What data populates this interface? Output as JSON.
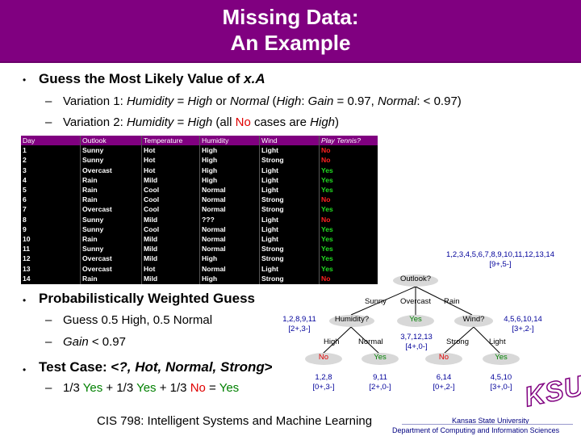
{
  "header": {
    "title_line1": "Missing Data:",
    "title_line2": "An Example"
  },
  "bullet_glyph": "•",
  "guess": {
    "prefix": "Guess the Most Likely Value of ",
    "var": "x.A"
  },
  "var1": {
    "label": "Variation 1:",
    "humidity_eq": "Humidity",
    "eq": " = ",
    "high": "High",
    "or": " or ",
    "normal": "Normal",
    "paren": " (",
    "high2": "High",
    "colon": ": ",
    "gain": "Gain",
    "gain_val": " = 0.97, ",
    "normal2": "Normal",
    "lt": ": < 0.97)"
  },
  "var2": {
    "label": "Variation 2:",
    "humidity": "Humidity",
    "eq": " = ",
    "high": "High",
    "open": " (all ",
    "no": "No",
    "cases": " cases are ",
    "high2": "High",
    "close": ")"
  },
  "table": {
    "headers": [
      "Day",
      "Outlook",
      "Temperature",
      "Humidity",
      "Wind",
      "Play Tennis?"
    ],
    "rows": [
      [
        "1",
        "Sunny",
        "Hot",
        "High",
        "Light",
        "No"
      ],
      [
        "2",
        "Sunny",
        "Hot",
        "High",
        "Strong",
        "No"
      ],
      [
        "3",
        "Overcast",
        "Hot",
        "High",
        "Light",
        "Yes"
      ],
      [
        "4",
        "Rain",
        "Mild",
        "High",
        "Light",
        "Yes"
      ],
      [
        "5",
        "Rain",
        "Cool",
        "Normal",
        "Light",
        "Yes"
      ],
      [
        "6",
        "Rain",
        "Cool",
        "Normal",
        "Strong",
        "No"
      ],
      [
        "7",
        "Overcast",
        "Cool",
        "Normal",
        "Strong",
        "Yes"
      ],
      [
        "8",
        "Sunny",
        "Mild",
        "???",
        "Light",
        "No"
      ],
      [
        "9",
        "Sunny",
        "Cool",
        "Normal",
        "Light",
        "Yes"
      ],
      [
        "10",
        "Rain",
        "Mild",
        "Normal",
        "Light",
        "Yes"
      ],
      [
        "11",
        "Sunny",
        "Mild",
        "Normal",
        "Strong",
        "Yes"
      ],
      [
        "12",
        "Overcast",
        "Mild",
        "High",
        "Strong",
        "Yes"
      ],
      [
        "13",
        "Overcast",
        "Hot",
        "Normal",
        "Light",
        "Yes"
      ],
      [
        "14",
        "Rain",
        "Mild",
        "High",
        "Strong",
        "No"
      ]
    ]
  },
  "weighted": {
    "title": "Probabilistically Weighted Guess",
    "guess_sub": "Guess 0.5 High, 0.5 Normal",
    "gain_label": "Gain",
    "gain_val": " < 0.97"
  },
  "testcase": {
    "prefix": "Test Case: <",
    "values": "?, Hot, Normal, Strong",
    "suffix": ">"
  },
  "calc": {
    "p1": "1/3 ",
    "y1": "Yes",
    "p2": " + 1/3 ",
    "y2": "Yes",
    "p3": " + 1/3 ",
    "n3": "No",
    "p4": " = ",
    "y4": "Yes"
  },
  "tree": {
    "root_set": "1,2,3,4,5,6,7,8,9,10,11,12,13,14",
    "root_count": "[9+,5-]",
    "root": "Outlook?",
    "b_sunny": "Sunny",
    "b_overcast": "Overcast",
    "b_rain": "Rain",
    "sunny_set": "1,2,8,9,11",
    "sunny_count": "[2+,3-]",
    "humidity": "Humidity?",
    "overcast_leaf": "Yes",
    "wind": "Wind?",
    "rain_set": "4,5,6,10,14",
    "rain_count": "[3+,2-]",
    "b_high": "High",
    "b_normal": "Normal",
    "overcast_set": "3,7,12,13",
    "overcast_count": "[4+,0-]",
    "b_strong": "Strong",
    "b_light": "Light",
    "leaf_no1": "No",
    "leaf_yes1": "Yes",
    "leaf_no2": "No",
    "leaf_yes2": "Yes",
    "s1": "1,2,8",
    "c1": "[0+,3-]",
    "s2": "9,11",
    "c2": "[2+,0-]",
    "s3": "6,14",
    "c3": "[0+,2-]",
    "s4": "4,5,10",
    "c4": "[3+,0-]"
  },
  "footer": {
    "course": "CIS 798: Intelligent Systems and Machine Learning",
    "university": "Kansas State University",
    "dept": "Department of Computing and Information Sciences",
    "logo": "KSU"
  },
  "colors": {
    "header_bg": "#800080",
    "no": "#e00000",
    "yes": "#008000",
    "tree_text": "#00009a"
  }
}
